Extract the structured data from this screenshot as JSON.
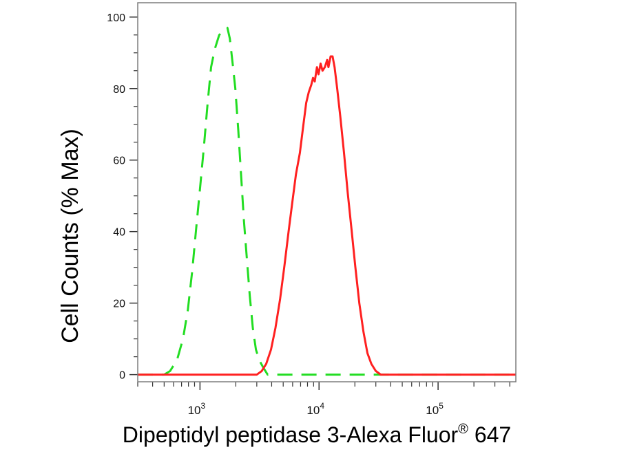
{
  "chart_data": {
    "type": "line",
    "title": "",
    "xlabel": "Dipeptidyl peptidase 3-Alexa Fluor",
    "xlabel_superscript": "®",
    "xlabel_suffix": " 647",
    "ylabel": "Cell Counts (% Max)",
    "x_scale": "log",
    "xlim": [
      300,
      450000
    ],
    "ylim": [
      -2,
      104
    ],
    "y_ticks": [
      0,
      20,
      40,
      60,
      80,
      100
    ],
    "x_ticks": [
      {
        "value": 1000,
        "base": "10",
        "exp": "3"
      },
      {
        "value": 10000,
        "base": "10",
        "exp": "4"
      },
      {
        "value": 100000,
        "base": "10",
        "exp": "5"
      }
    ],
    "grid": false,
    "series": [
      {
        "color": "#22dd22",
        "style": "dashed",
        "points": [
          [
            300,
            0
          ],
          [
            500,
            0
          ],
          [
            560,
            1
          ],
          [
            640,
            4
          ],
          [
            720,
            10
          ],
          [
            790,
            18
          ],
          [
            860,
            29
          ],
          [
            930,
            41
          ],
          [
            1000,
            52
          ],
          [
            1080,
            64
          ],
          [
            1160,
            76
          ],
          [
            1240,
            86
          ],
          [
            1330,
            91
          ],
          [
            1450,
            95
          ],
          [
            1560,
            96
          ],
          [
            1700,
            97
          ],
          [
            1780,
            94
          ],
          [
            1880,
            87
          ],
          [
            1980,
            80
          ],
          [
            2100,
            68
          ],
          [
            2220,
            55
          ],
          [
            2340,
            43
          ],
          [
            2480,
            32
          ],
          [
            2620,
            22
          ],
          [
            2780,
            13
          ],
          [
            2950,
            7
          ],
          [
            3150,
            4
          ],
          [
            3400,
            2
          ],
          [
            3700,
            0
          ],
          [
            5000,
            0
          ],
          [
            20000,
            0
          ],
          [
            450000,
            0
          ]
        ]
      },
      {
        "color": "#ff2020",
        "style": "solid",
        "points": [
          [
            300,
            0
          ],
          [
            2000,
            0
          ],
          [
            3000,
            0
          ],
          [
            3300,
            1
          ],
          [
            3600,
            3
          ],
          [
            3950,
            7
          ],
          [
            4300,
            13
          ],
          [
            4700,
            21
          ],
          [
            5100,
            30
          ],
          [
            5550,
            40
          ],
          [
            5950,
            48
          ],
          [
            6400,
            56
          ],
          [
            6900,
            62
          ],
          [
            7400,
            70
          ],
          [
            7800,
            76
          ],
          [
            8200,
            79
          ],
          [
            8600,
            81
          ],
          [
            8900,
            83
          ],
          [
            9200,
            82
          ],
          [
            9600,
            86
          ],
          [
            9900,
            84
          ],
          [
            10300,
            87
          ],
          [
            10700,
            85
          ],
          [
            11200,
            86
          ],
          [
            11700,
            88
          ],
          [
            12000,
            86
          ],
          [
            12500,
            89
          ],
          [
            13000,
            89
          ],
          [
            13500,
            86
          ],
          [
            14200,
            80
          ],
          [
            15100,
            72
          ],
          [
            16200,
            62
          ],
          [
            17400,
            51
          ],
          [
            18700,
            41
          ],
          [
            20200,
            30
          ],
          [
            21800,
            20
          ],
          [
            23600,
            12
          ],
          [
            25500,
            6
          ],
          [
            27500,
            3
          ],
          [
            30000,
            1
          ],
          [
            33000,
            0
          ],
          [
            60000,
            0
          ],
          [
            450000,
            0
          ]
        ]
      }
    ]
  }
}
